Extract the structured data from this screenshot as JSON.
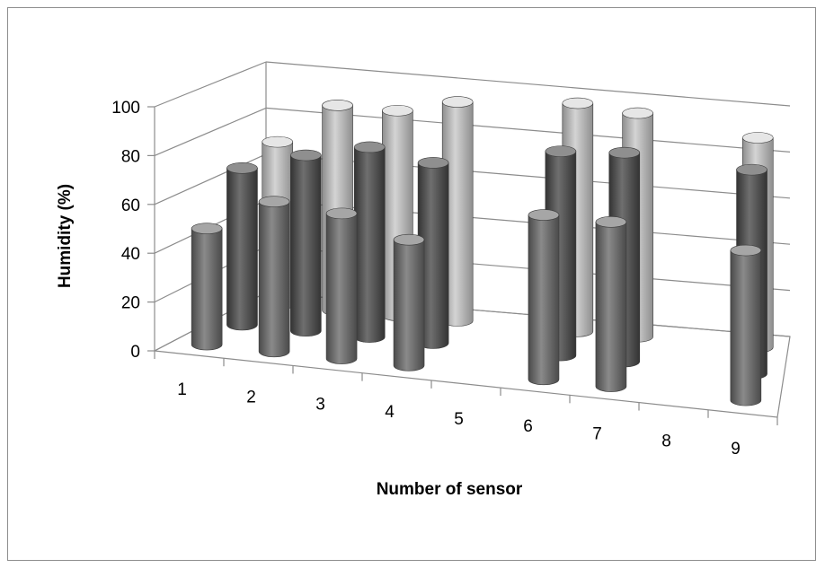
{
  "chart_data": {
    "type": "bar",
    "subtype": "3d-cylinder",
    "title": "",
    "xlabel": "Number of sensor",
    "ylabel": "Humidity (%)",
    "ylim": [
      0,
      100
    ],
    "yticks": [
      "0",
      "20",
      "40",
      "60",
      "80",
      "100"
    ],
    "categories": [
      "1",
      "2",
      "3",
      "4",
      "5",
      "6",
      "7",
      "8",
      "9"
    ],
    "grid": true,
    "legend": "none",
    "series": [
      {
        "color": "#6e6e6e",
        "values": [
          48,
          62,
          60,
          52,
          null,
          68,
          68,
          null,
          62
        ]
      },
      {
        "color": "#595959",
        "values": [
          66,
          74,
          80,
          76,
          null,
          86,
          88,
          null,
          86
        ]
      },
      {
        "color": "#b8b8b8",
        "values": [
          70,
          88,
          88,
          94,
          null,
          98,
          96,
          null,
          90
        ]
      }
    ]
  }
}
